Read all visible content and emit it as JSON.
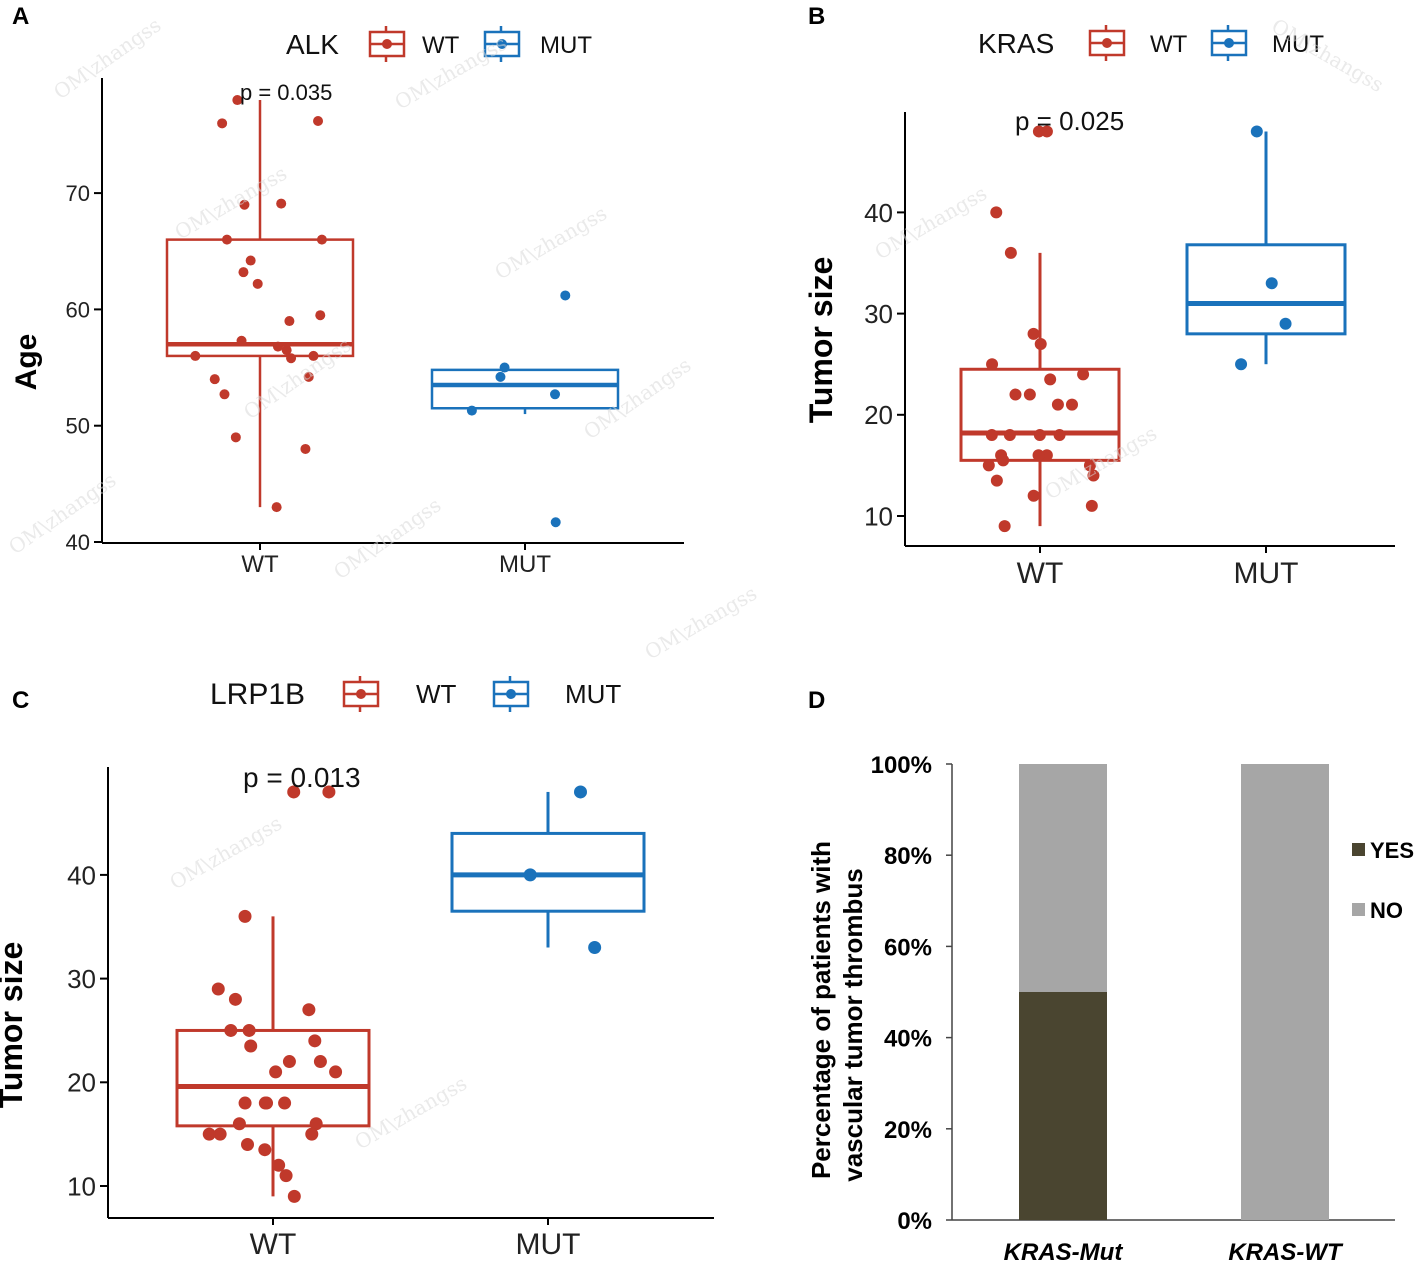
{
  "chart_data": [
    {
      "panel": "A",
      "type": "boxplot",
      "title": "ALK",
      "legend": [
        "WT",
        "MUT"
      ],
      "ylabel": "Age",
      "xlabel": "",
      "categories": [
        "WT",
        "MUT"
      ],
      "ylim": [
        40,
        77.5
      ],
      "yticks": [
        40,
        50,
        60,
        70
      ],
      "pvalue": "p = 0.035",
      "colors": {
        "WT": "#c0392b",
        "MUT": "#1a72bb"
      },
      "groups": [
        {
          "name": "WT",
          "min": 43,
          "q1": 56,
          "median": 57,
          "q3": 66,
          "max": 78,
          "points": [
            78,
            76,
            76.2,
            69,
            69.1,
            66,
            66,
            64.2,
            63.2,
            62.2,
            59.5,
            59,
            57.3,
            56.8,
            56.5,
            56,
            56,
            55.8,
            54.2,
            54,
            52.7,
            49,
            48,
            43
          ]
        },
        {
          "name": "MUT",
          "min": 51,
          "q1": 51.5,
          "median": 53.5,
          "q3": 54.8,
          "max": 54.8,
          "points": [
            61.2,
            55,
            54.2,
            52.7,
            51.3,
            41.7
          ]
        }
      ]
    },
    {
      "panel": "B",
      "type": "boxplot",
      "title": "KRAS",
      "legend": [
        "WT",
        "MUT"
      ],
      "ylabel": "Tumor size",
      "xlabel": "",
      "categories": [
        "WT",
        "MUT"
      ],
      "ylim": [
        7,
        50
      ],
      "yticks": [
        10,
        20,
        30,
        40
      ],
      "pvalue": "p = 0.025",
      "colors": {
        "WT": "#c0392b",
        "MUT": "#1a72bb"
      },
      "groups": [
        {
          "name": "WT",
          "min": 9,
          "q1": 15.5,
          "median": 18.2,
          "q3": 24.5,
          "max": 36,
          "points": [
            48,
            48,
            40,
            36,
            28,
            27,
            25,
            24,
            23.5,
            22,
            22,
            21,
            21,
            18,
            18,
            18,
            18,
            16,
            16,
            16,
            15.5,
            15,
            15,
            14,
            13.5,
            12,
            11,
            9
          ]
        },
        {
          "name": "MUT",
          "min": 25,
          "q1": 28,
          "median": 31,
          "q3": 36.8,
          "max": 48,
          "points": [
            48,
            33,
            29,
            25
          ]
        }
      ]
    },
    {
      "panel": "C",
      "type": "boxplot",
      "title": "LRP1B",
      "legend": [
        "WT",
        "MUT"
      ],
      "ylabel": "Tumor size",
      "xlabel": "",
      "categories": [
        "WT",
        "MUT"
      ],
      "ylim": [
        7,
        50
      ],
      "yticks": [
        10,
        20,
        30,
        40
      ],
      "pvalue": "p = 0.013",
      "colors": {
        "WT": "#c0392b",
        "MUT": "#1a72bb"
      },
      "groups": [
        {
          "name": "WT",
          "min": 9,
          "q1": 15.8,
          "median": 19.6,
          "q3": 25,
          "max": 36,
          "points": [
            48,
            48,
            36,
            29,
            28,
            27,
            25,
            25,
            24,
            23.5,
            22,
            22,
            21,
            21,
            18,
            18,
            18,
            18,
            16,
            16,
            15,
            15,
            15,
            14,
            13.5,
            12,
            11,
            9
          ]
        },
        {
          "name": "MUT",
          "min": 33,
          "q1": 36.5,
          "median": 40,
          "q3": 44,
          "max": 48,
          "points": [
            48,
            40,
            33
          ]
        }
      ]
    },
    {
      "panel": "D",
      "type": "stacked_bar",
      "categories": [
        "KRAS-Mut",
        "KRAS-WT"
      ],
      "ylabel_line1": "Percentage of patients with",
      "ylabel_line2": "vascular tumor thrombus",
      "yticks": [
        "0%",
        "20%",
        "40%",
        "60%",
        "80%",
        "100%"
      ],
      "ylim": [
        0,
        100
      ],
      "series": [
        {
          "name": "YES",
          "values": [
            50,
            0
          ],
          "color": "#4a4530"
        },
        {
          "name": "NO",
          "values": [
            50,
            100
          ],
          "color": "#a6a6a6"
        }
      ]
    }
  ],
  "watermark": "OM\\zhangss"
}
